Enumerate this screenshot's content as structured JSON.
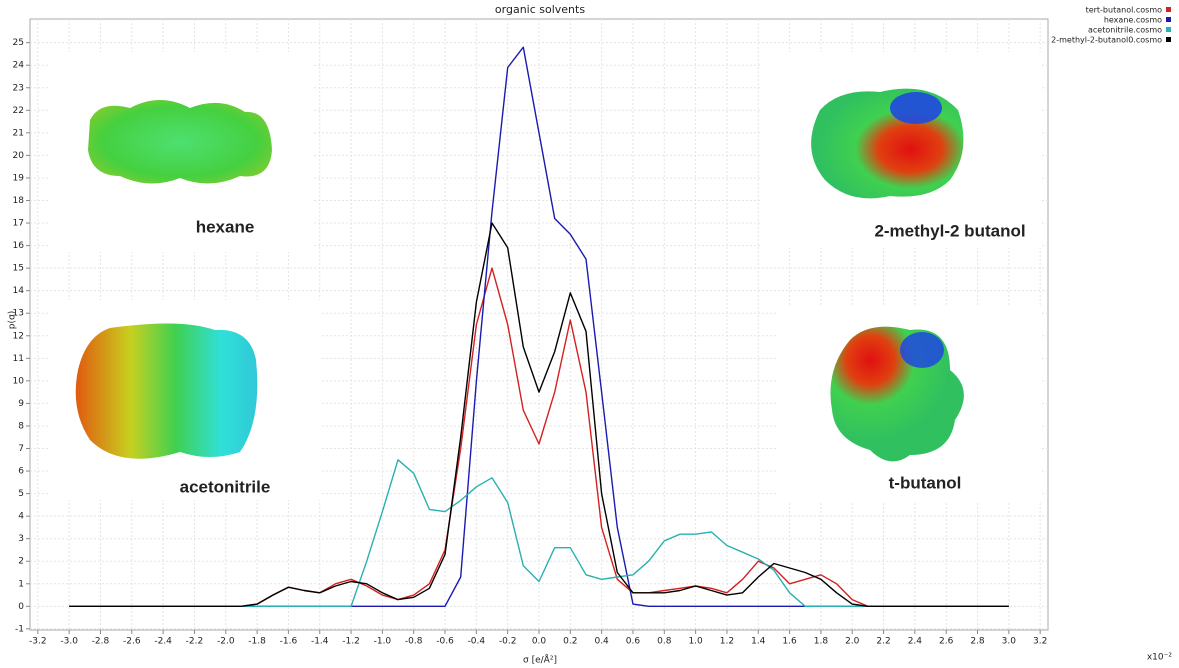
{
  "chart_data": {
    "type": "line",
    "title": "organic solvents",
    "x_label": "σ [e/Å²]",
    "y_label": "p(σ)",
    "x_multiplier": "x10⁻²",
    "grid": true,
    "legend": "top-right",
    "annotations": [
      "hexane",
      "2-methyl-2 butanol",
      "acetonitrile",
      "t-butanol"
    ],
    "xlim": [
      -3.25,
      3.25
    ],
    "ylim": [
      -1.05,
      26.05
    ],
    "xticks": [
      -3.2,
      {
        "value": -3,
        "label": "-3.0"
      },
      -2.8,
      -2.6,
      -2.4,
      -2.2,
      {
        "value": -2,
        "label": "-2.0"
      },
      -1.8,
      -1.6,
      -1.4,
      -1.2,
      {
        "value": -1,
        "label": "-1.0"
      },
      -0.8,
      -0.6,
      -0.4,
      -0.2,
      {
        "value": 0,
        "label": "0.0"
      },
      0.2,
      0.4,
      0.6,
      0.8,
      {
        "value": 1,
        "label": "1.0"
      },
      1.2,
      1.4,
      1.6,
      1.8,
      {
        "value": 2,
        "label": "2.0"
      },
      2.2,
      2.4,
      2.6,
      2.8,
      {
        "value": 3,
        "label": "3.0"
      },
      3.2
    ],
    "yticks": [
      -1,
      0,
      1,
      2,
      3,
      4,
      5,
      6,
      7,
      8,
      9,
      10,
      11,
      12,
      13,
      14,
      15,
      16,
      17,
      18,
      19,
      20,
      21,
      22,
      23,
      24,
      25
    ],
    "x": [
      -3.0,
      -2.9,
      -2.8,
      -2.7,
      -2.6,
      -2.5,
      -2.4,
      -2.3,
      -2.2,
      -2.1,
      -2.0,
      -1.9,
      -1.8,
      -1.7,
      -1.6,
      -1.5,
      -1.4,
      -1.3,
      -1.2,
      -1.1,
      -1.0,
      -0.9,
      -0.8,
      -0.7,
      -0.6,
      -0.5,
      -0.4,
      -0.3,
      -0.2,
      -0.1,
      0.0,
      0.1,
      0.2,
      0.3,
      0.4,
      0.5,
      0.6,
      0.7,
      0.8,
      0.9,
      1.0,
      1.1,
      1.2,
      1.3,
      1.4,
      1.5,
      1.6,
      1.7,
      1.8,
      1.9,
      2.0,
      2.1,
      2.2,
      2.3,
      2.4,
      2.5,
      2.6,
      2.7,
      2.8,
      2.9,
      3.0
    ],
    "series": [
      {
        "name": "tert-butanol.cosmo",
        "color": "#d42020",
        "values": [
          0,
          0,
          0,
          0,
          0,
          0,
          0,
          0,
          0,
          0,
          0,
          0,
          0.1,
          0.5,
          0.85,
          0.7,
          0.6,
          1.0,
          1.2,
          0.9,
          0.5,
          0.3,
          0.5,
          1.0,
          2.5,
          7,
          12.5,
          15,
          12.5,
          8.7,
          7.2,
          9.5,
          12.7,
          9.5,
          3.5,
          1.2,
          0.6,
          0.6,
          0.7,
          0.8,
          0.9,
          0.8,
          0.6,
          1.2,
          2.0,
          1.7,
          1.0,
          1.2,
          1.4,
          1.0,
          0.3,
          0,
          0,
          0,
          0,
          0,
          0,
          0,
          0,
          0,
          0
        ]
      },
      {
        "name": "hexane.cosmo",
        "color": "#1a1ab0",
        "values": [
          0,
          0,
          0,
          0,
          0,
          0,
          0,
          0,
          0,
          0,
          0,
          0,
          0,
          0,
          0,
          0,
          0,
          0,
          0,
          0,
          0,
          0,
          0,
          0,
          0,
          1.3,
          10,
          17.5,
          23.9,
          24.8,
          21,
          17.2,
          16.5,
          15.4,
          9.5,
          3.5,
          0.1,
          0,
          0,
          0,
          0,
          0,
          0,
          0,
          0,
          0,
          0,
          0,
          0,
          0,
          0,
          0,
          0,
          0,
          0,
          0,
          0,
          0,
          0,
          0,
          0
        ]
      },
      {
        "name": "acetonitrile.cosmo",
        "color": "#2ab0b0",
        "values": [
          0,
          0,
          0,
          0,
          0,
          0,
          0,
          0,
          0,
          0,
          0,
          0,
          0,
          0,
          0,
          0,
          0,
          0,
          0,
          2.0,
          4.2,
          6.5,
          5.9,
          4.3,
          4.2,
          4.7,
          5.3,
          5.7,
          4.6,
          1.8,
          1.1,
          2.6,
          2.6,
          1.4,
          1.2,
          1.3,
          1.4,
          2.0,
          2.9,
          3.2,
          3.2,
          3.3,
          2.7,
          2.4,
          2.1,
          1.6,
          0.6,
          0,
          0,
          0,
          0,
          0,
          0,
          0,
          0,
          0,
          0,
          0,
          0,
          0,
          0
        ]
      },
      {
        "name": "2-methyl-2-butanol0.cosmo",
        "color": "#000000",
        "values": [
          0,
          0,
          0,
          0,
          0,
          0,
          0,
          0,
          0,
          0,
          0,
          0,
          0.1,
          0.5,
          0.85,
          0.7,
          0.6,
          0.9,
          1.1,
          1.0,
          0.6,
          0.3,
          0.4,
          0.8,
          2.3,
          7.5,
          13.5,
          17.0,
          15.9,
          11.5,
          9.5,
          11.3,
          13.9,
          12.2,
          5.0,
          1.5,
          0.6,
          0.6,
          0.6,
          0.7,
          0.9,
          0.7,
          0.5,
          0.6,
          1.3,
          1.9,
          1.7,
          1.5,
          1.2,
          0.6,
          0.1,
          0,
          0,
          0,
          0,
          0,
          0,
          0,
          0,
          0,
          0
        ]
      }
    ]
  }
}
